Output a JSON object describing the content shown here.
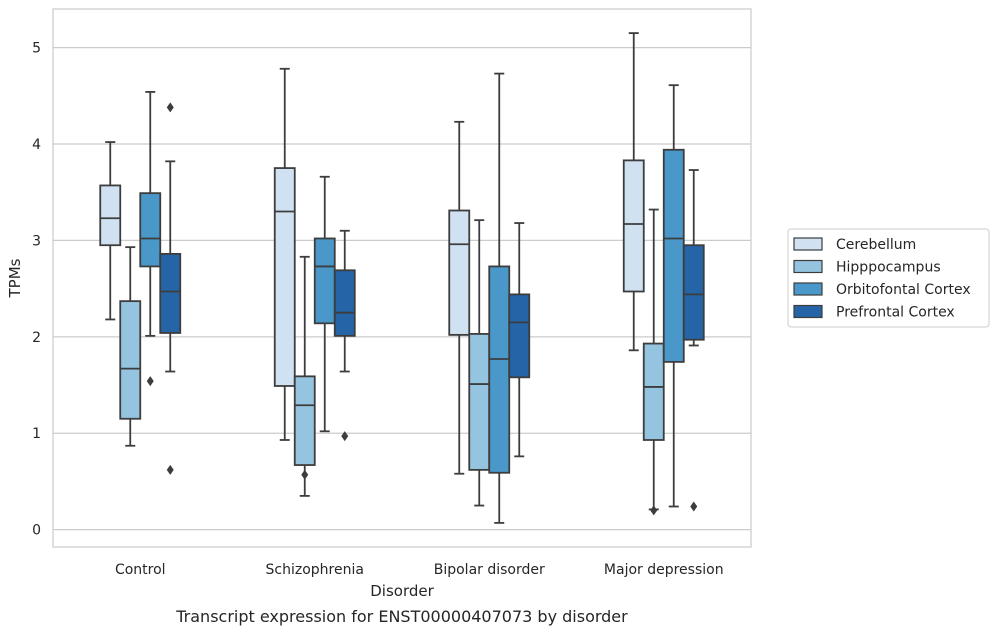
{
  "chart_data": {
    "type": "box",
    "caption": "Transcript expression for ENST00000407073 by disorder",
    "xlabel": "Disorder",
    "ylabel": "TPMs",
    "ylim": [
      -0.18,
      5.4
    ],
    "yticks": [
      0,
      1,
      2,
      3,
      4,
      5
    ],
    "grid": "horizontal",
    "legend_position": "right",
    "categories": [
      "Control",
      "Schizophrenia",
      "Bipolar disorder",
      "Major depression"
    ],
    "series": [
      {
        "name": "Cerebellum",
        "color": "#d0e1f2",
        "boxes": [
          {
            "whisker_low": 2.18,
            "q1": 2.95,
            "median": 3.23,
            "q3": 3.57,
            "whisker_high": 4.02,
            "outliers": []
          },
          {
            "whisker_low": 0.93,
            "q1": 1.49,
            "median": 3.3,
            "q3": 3.75,
            "whisker_high": 4.78,
            "outliers": []
          },
          {
            "whisker_low": 0.58,
            "q1": 2.02,
            "median": 2.96,
            "q3": 3.31,
            "whisker_high": 4.23,
            "outliers": []
          },
          {
            "whisker_low": 1.86,
            "q1": 2.47,
            "median": 3.17,
            "q3": 3.83,
            "whisker_high": 5.15,
            "outliers": []
          }
        ]
      },
      {
        "name": "Hipppocampus",
        "color": "#94c4df",
        "boxes": [
          {
            "whisker_low": 0.87,
            "q1": 1.15,
            "median": 1.67,
            "q3": 2.37,
            "whisker_high": 2.93,
            "outliers": []
          },
          {
            "whisker_low": 0.35,
            "q1": 0.67,
            "median": 1.29,
            "q3": 1.59,
            "whisker_high": 2.83,
            "outliers": [
              0.57
            ]
          },
          {
            "whisker_low": 0.25,
            "q1": 0.62,
            "median": 1.51,
            "q3": 2.03,
            "whisker_high": 3.21,
            "outliers": []
          },
          {
            "whisker_low": 0.21,
            "q1": 0.93,
            "median": 1.48,
            "q3": 1.93,
            "whisker_high": 3.32,
            "outliers": [
              0.2
            ]
          }
        ]
      },
      {
        "name": "Orbitofontal Cortex",
        "color": "#4a98c9",
        "boxes": [
          {
            "whisker_low": 2.01,
            "q1": 2.73,
            "median": 3.02,
            "q3": 3.49,
            "whisker_high": 4.54,
            "outliers": [
              1.54
            ]
          },
          {
            "whisker_low": 1.02,
            "q1": 2.14,
            "median": 2.73,
            "q3": 3.02,
            "whisker_high": 3.66,
            "outliers": []
          },
          {
            "whisker_low": 0.07,
            "q1": 0.59,
            "median": 1.77,
            "q3": 2.73,
            "whisker_high": 4.73,
            "outliers": []
          },
          {
            "whisker_low": 0.24,
            "q1": 1.74,
            "median": 3.02,
            "q3": 3.94,
            "whisker_high": 4.61,
            "outliers": []
          }
        ]
      },
      {
        "name": "Prefrontal Cortex",
        "color": "#2464a7",
        "boxes": [
          {
            "whisker_low": 1.64,
            "q1": 2.04,
            "median": 2.47,
            "q3": 2.86,
            "whisker_high": 3.82,
            "outliers": [
              4.38,
              0.62
            ]
          },
          {
            "whisker_low": 1.64,
            "q1": 2.01,
            "median": 2.25,
            "q3": 2.69,
            "whisker_high": 3.1,
            "outliers": [
              0.97
            ]
          },
          {
            "whisker_low": 0.76,
            "q1": 1.58,
            "median": 2.15,
            "q3": 2.44,
            "whisker_high": 3.18,
            "outliers": []
          },
          {
            "whisker_low": 1.91,
            "q1": 1.97,
            "median": 2.44,
            "q3": 2.95,
            "whisker_high": 3.73,
            "outliers": [
              0.24
            ]
          }
        ]
      }
    ]
  }
}
